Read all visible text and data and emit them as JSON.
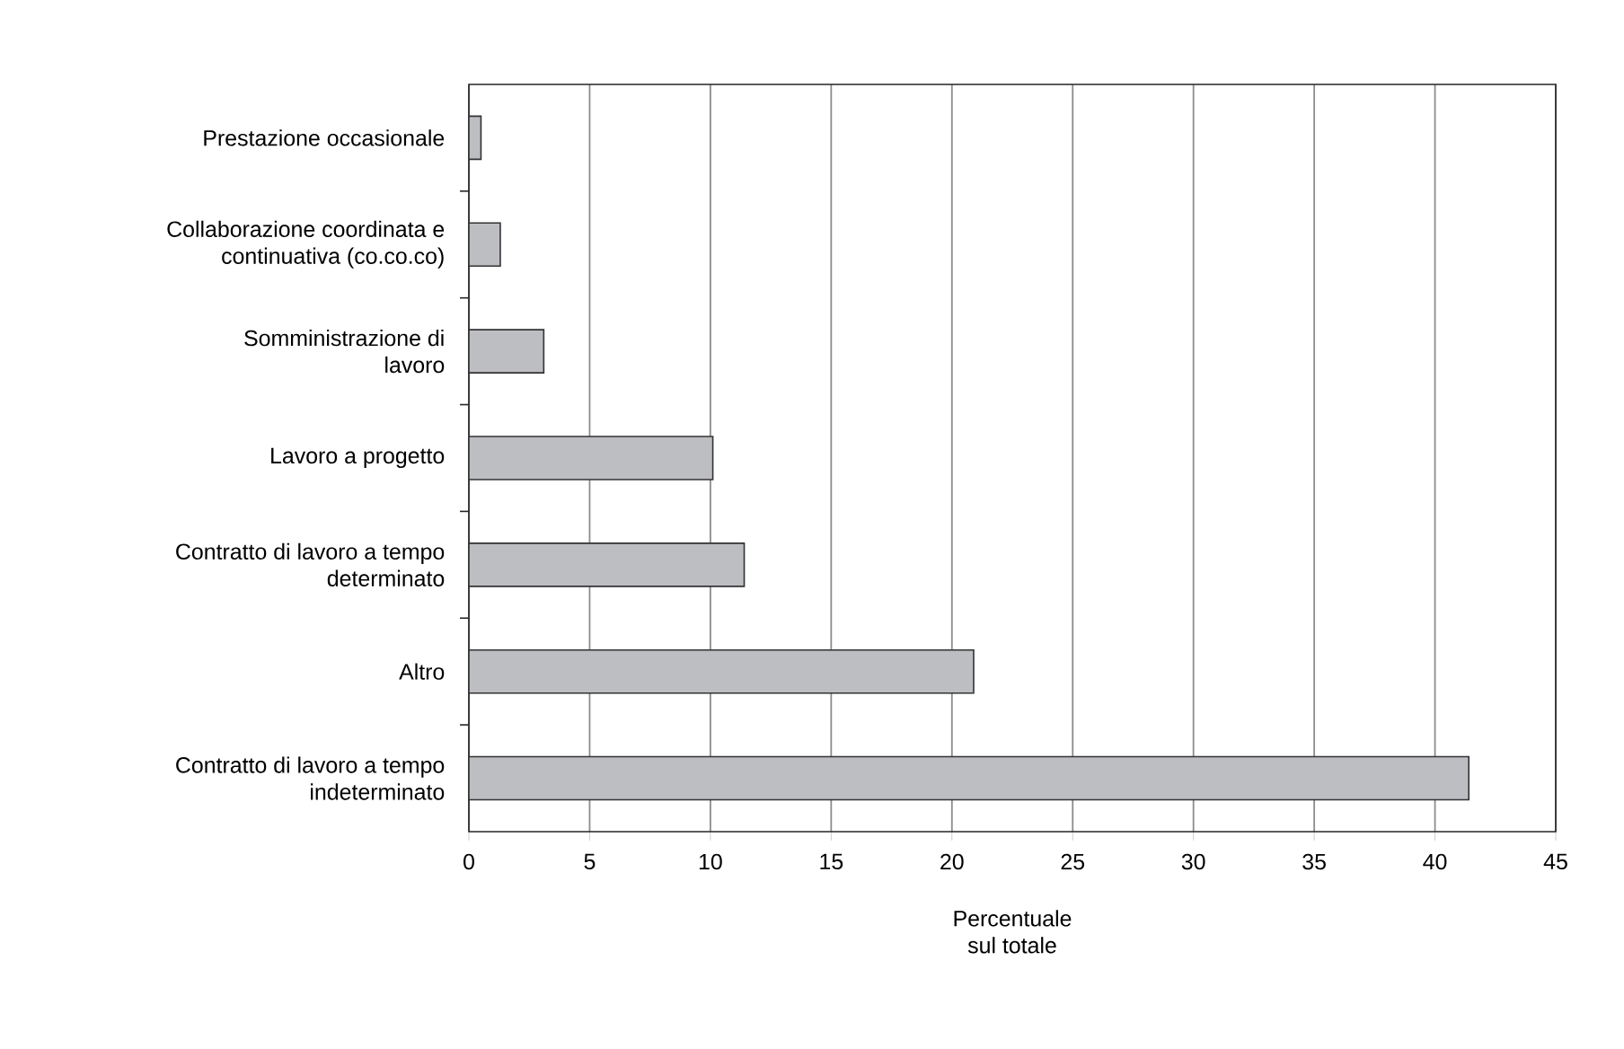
{
  "chart_data": {
    "type": "bar",
    "orientation": "horizontal",
    "xlabel": "Percentuale sul totale",
    "categories": [
      "Prestazione occasionale",
      "Collaborazione coordinata e continuativa (co.co.co)",
      "Somministrazione di lavoro",
      "Lavoro a progetto",
      "Contratto di lavoro a tempo determinato",
      "Altro",
      "Contratto di lavoro a tempo indeterminato"
    ],
    "values": [
      0.5,
      1.3,
      3.1,
      10.1,
      11.4,
      20.9,
      41.4
    ],
    "color": "#bdbec2",
    "xlim": [
      0,
      45
    ],
    "xticks": [
      0,
      5,
      10,
      15,
      20,
      25,
      30,
      35,
      40,
      45
    ],
    "grid": "x"
  }
}
